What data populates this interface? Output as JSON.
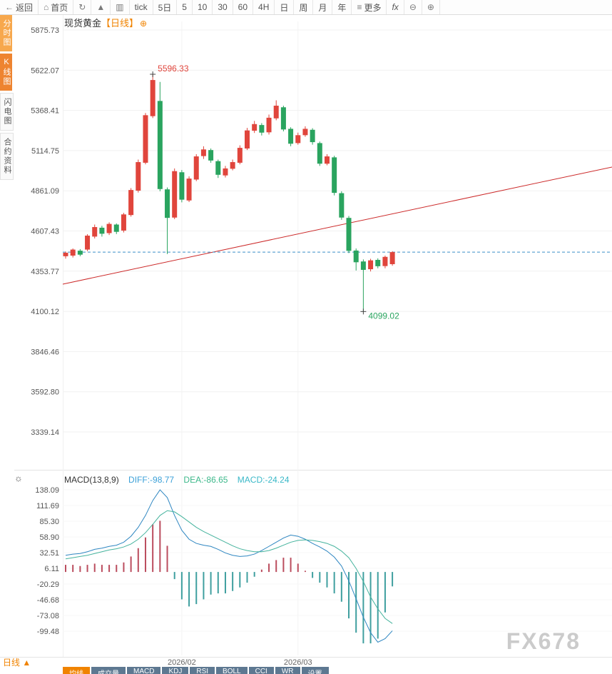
{
  "title": {
    "instrument": "现货黄金",
    "period_tag": "【日线】"
  },
  "toolbar": {
    "items": [
      {
        "name": "back-button",
        "icon": "back",
        "label": "返回"
      },
      {
        "name": "home-button",
        "icon": "home",
        "label": "首页"
      },
      {
        "name": "refresh-button",
        "icon": "refresh",
        "label": ""
      },
      {
        "name": "area-chart-button",
        "icon": "area-chart",
        "label": ""
      },
      {
        "name": "candle-chart-button",
        "icon": "candle-chart",
        "label": ""
      },
      {
        "name": "tick-button",
        "icon": "",
        "label": "tick"
      },
      {
        "name": "interval-5d-button",
        "icon": "",
        "label": "5日"
      },
      {
        "name": "interval-5-button",
        "icon": "",
        "label": "5"
      },
      {
        "name": "interval-10-button",
        "icon": "",
        "label": "10"
      },
      {
        "name": "interval-30-button",
        "icon": "",
        "label": "30"
      },
      {
        "name": "interval-60-button",
        "icon": "",
        "label": "60"
      },
      {
        "name": "interval-4h-button",
        "icon": "",
        "label": "4H"
      },
      {
        "name": "interval-day-button",
        "icon": "",
        "label": "日"
      },
      {
        "name": "interval-week-button",
        "icon": "",
        "label": "周"
      },
      {
        "name": "interval-month-button",
        "icon": "",
        "label": "月"
      },
      {
        "name": "interval-year-button",
        "icon": "",
        "label": "年"
      },
      {
        "name": "more-button",
        "icon": "menu",
        "label": "更多"
      },
      {
        "name": "fx-button",
        "icon": "",
        "label": "fx"
      },
      {
        "name": "zoom-out-button",
        "icon": "zoom-out",
        "label": ""
      },
      {
        "name": "zoom-in-button",
        "icon": "zoom-in",
        "label": ""
      }
    ]
  },
  "sidebar": {
    "tabs": [
      {
        "name": "time-share",
        "label": "分时图",
        "style": "orange1"
      },
      {
        "name": "kline",
        "label": "K线图",
        "style": "orange2"
      },
      {
        "name": "lightning",
        "label": "闪电图",
        "style": "plain"
      },
      {
        "name": "contract-info",
        "label": "合约资料",
        "style": "plain"
      }
    ]
  },
  "bottom": {
    "period_label": "日线",
    "arrow": "▲",
    "tabs": [
      {
        "name": "ma",
        "label": "均线"
      },
      {
        "name": "volume",
        "label": "成交量"
      },
      {
        "name": "macd",
        "label": "MACD"
      },
      {
        "name": "kdj",
        "label": "KDJ"
      },
      {
        "name": "rsi",
        "label": "RSI"
      },
      {
        "name": "boll",
        "label": "BOLL"
      },
      {
        "name": "cci",
        "label": "CCI"
      },
      {
        "name": "wr",
        "label": "WR"
      },
      {
        "name": "settings",
        "label": "设置"
      }
    ]
  },
  "watermark": "FX678",
  "colors": {
    "accent": "#f08300"
  },
  "chart_data": [
    {
      "type": "candlestick",
      "symbol": "现货黄金",
      "period": "日线",
      "y_ticks": [
        5875.73,
        5622.07,
        5368.41,
        5114.75,
        4861.09,
        4607.43,
        4353.77,
        4100.12,
        3846.46,
        3592.8,
        3339.14
      ],
      "x_labels": [
        {
          "text": "2026/02",
          "index": 16
        },
        {
          "text": "2026/03",
          "index": 32
        }
      ],
      "up_color": "#e0453c",
      "down_color": "#2aa45f",
      "candles": [
        [
          4448,
          4478,
          4433,
          4470
        ],
        [
          4452,
          4497,
          4440,
          4490
        ],
        [
          4483,
          4493,
          4448,
          4458
        ],
        [
          4490,
          4587,
          4480,
          4578
        ],
        [
          4572,
          4648,
          4560,
          4632
        ],
        [
          4628,
          4640,
          4572,
          4590
        ],
        [
          4594,
          4662,
          4582,
          4652
        ],
        [
          4648,
          4655,
          4588,
          4602
        ],
        [
          4610,
          4722,
          4598,
          4712
        ],
        [
          4708,
          4878,
          4698,
          4866
        ],
        [
          4862,
          5058,
          4850,
          5042
        ],
        [
          5038,
          5352,
          5028,
          5338
        ],
        [
          5332,
          5596.33,
          5320,
          5560
        ],
        [
          5428,
          5548,
          4858,
          4872
        ],
        [
          4870,
          4882,
          4462,
          4690
        ],
        [
          4692,
          5002,
          4682,
          4985
        ],
        [
          4978,
          4992,
          4788,
          4805
        ],
        [
          4800,
          4952,
          4790,
          4938
        ],
        [
          4932,
          5092,
          4922,
          5078
        ],
        [
          5080,
          5142,
          5062,
          5122
        ],
        [
          5118,
          5128,
          5038,
          5052
        ],
        [
          5048,
          5058,
          4942,
          4962
        ],
        [
          4958,
          5018,
          4945,
          5002
        ],
        [
          5000,
          5058,
          4990,
          5042
        ],
        [
          5038,
          5148,
          5028,
          5132
        ],
        [
          5128,
          5258,
          5118,
          5242
        ],
        [
          5240,
          5302,
          5226,
          5282
        ],
        [
          5276,
          5288,
          5210,
          5228
        ],
        [
          5230,
          5342,
          5216,
          5322
        ],
        [
          5318,
          5432,
          5306,
          5398
        ],
        [
          5388,
          5398,
          5236,
          5248
        ],
        [
          5252,
          5262,
          5142,
          5158
        ],
        [
          5162,
          5228,
          5152,
          5212
        ],
        [
          5212,
          5268,
          5202,
          5252
        ],
        [
          5246,
          5256,
          5152,
          5168
        ],
        [
          5162,
          5172,
          5018,
          5032
        ],
        [
          5032,
          5092,
          5022,
          5078
        ],
        [
          5072,
          5082,
          4832,
          4848
        ],
        [
          4846,
          4858,
          4678,
          4692
        ],
        [
          4690,
          4702,
          4468,
          4482
        ],
        [
          4484,
          4497,
          4358,
          4410
        ],
        [
          4415,
          4428,
          4099.02,
          4362
        ],
        [
          4366,
          4432,
          4352,
          4422
        ],
        [
          4425,
          4435,
          4372,
          4385
        ],
        [
          4386,
          4452,
          4372,
          4444
        ],
        [
          4398,
          4480,
          4388,
          4474
        ]
      ],
      "trend_line": {
        "color": "#cc2a2a",
        "start_price": 4272,
        "end_price": 5011
      },
      "last_price_line": {
        "price": 4474,
        "color": "#3a8fc7",
        "style": "dashed"
      },
      "annotations": [
        {
          "text": "5596.33",
          "price": 5596.33,
          "index": 12,
          "color": "#e0453c",
          "position": "above"
        },
        {
          "text": "4099.02",
          "price": 4099.02,
          "index": 41,
          "color": "#2aa45f",
          "position": "below"
        }
      ]
    },
    {
      "type": "macd",
      "label": "MACD(13,8,9)",
      "diff_label": "DIFF:-98.77",
      "dea_label": "DEA:-86.65",
      "macd_label": "MACD:-24.24",
      "diff_value": -98.77,
      "dea_value": -86.65,
      "macd_value": -24.24,
      "y_ticks": [
        138.09,
        111.69,
        85.3,
        58.9,
        32.51,
        6.11,
        -20.29,
        -46.68,
        -73.08,
        -99.48
      ],
      "diff_color": "#2e86c1",
      "dea_color": "#45b39d",
      "pos_color": "#bb4d5e",
      "neg_color": "#3f9f9f",
      "diff": [
        28,
        30,
        31,
        34,
        38,
        40,
        43,
        45,
        50,
        60,
        75,
        95,
        120,
        138,
        125,
        95,
        70,
        55,
        48,
        45,
        43,
        38,
        32,
        28,
        26,
        27,
        30,
        36,
        43,
        50,
        57,
        62,
        60,
        55,
        48,
        42,
        35,
        25,
        10,
        -15,
        -45,
        -76,
        -102,
        -118,
        -112,
        -98.77
      ],
      "dea": [
        22,
        24,
        26,
        28,
        31,
        34,
        37,
        39,
        42,
        47,
        55,
        66,
        80,
        95,
        103,
        101,
        93,
        84,
        75,
        68,
        62,
        56,
        50,
        44,
        39,
        36,
        34,
        34,
        36,
        40,
        45,
        50,
        53,
        54,
        53,
        51,
        48,
        43,
        35,
        24,
        6,
        -16,
        -42,
        -62,
        -78,
        -86.65
      ],
      "hist": [
        12,
        12,
        10,
        12,
        14,
        12,
        12,
        12,
        16,
        26,
        40,
        58,
        80,
        86,
        44,
        -12,
        -46,
        -58,
        -54,
        -46,
        -38,
        -36,
        -36,
        -32,
        -26,
        -18,
        -8,
        4,
        14,
        20,
        24,
        24,
        14,
        2,
        -10,
        -18,
        -26,
        -36,
        -50,
        -78,
        -102,
        -120,
        -120,
        -112,
        -68,
        -24.24
      ]
    }
  ]
}
